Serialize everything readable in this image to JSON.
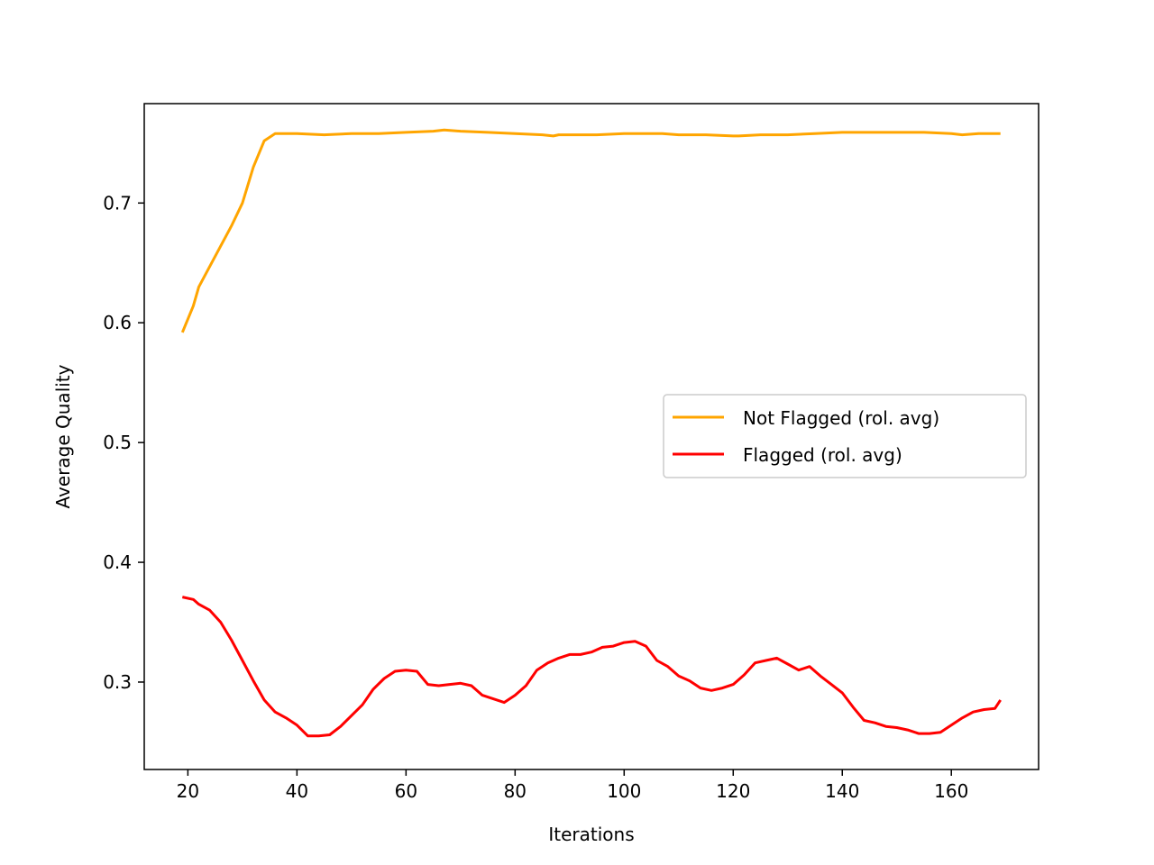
{
  "chart_data": {
    "type": "line",
    "title": "",
    "xlabel": "Iterations",
    "ylabel": "Average Quality",
    "xlim": [
      12,
      176
    ],
    "ylim": [
      0.227,
      0.783
    ],
    "xticks": [
      20,
      40,
      60,
      80,
      100,
      120,
      140,
      160
    ],
    "xtick_labels": [
      "20",
      "40",
      "60",
      "80",
      "100",
      "120",
      "140",
      "160"
    ],
    "yticks": [
      0.3,
      0.4,
      0.5,
      0.6,
      0.7
    ],
    "ytick_labels": [
      "0.3",
      "0.4",
      "0.5",
      "0.6",
      "0.7"
    ],
    "grid": false,
    "legend_position": "center-right",
    "series": [
      {
        "name": "Not Flagged (rol. avg)",
        "color": "#ffa500",
        "x": [
          19,
          21,
          22,
          24,
          26,
          28,
          30,
          32,
          34,
          36,
          40,
          45,
          50,
          55,
          60,
          65,
          67,
          70,
          75,
          80,
          85,
          87,
          88,
          95,
          100,
          107,
          110,
          115,
          120,
          121,
          125,
          130,
          135,
          140,
          145,
          150,
          155,
          160,
          162,
          165,
          169
        ],
        "y": [
          0.592,
          0.614,
          0.63,
          0.647,
          0.664,
          0.681,
          0.7,
          0.73,
          0.752,
          0.758,
          0.758,
          0.757,
          0.758,
          0.758,
          0.759,
          0.76,
          0.761,
          0.76,
          0.759,
          0.758,
          0.757,
          0.756,
          0.757,
          0.757,
          0.758,
          0.758,
          0.757,
          0.757,
          0.756,
          0.756,
          0.757,
          0.757,
          0.758,
          0.759,
          0.759,
          0.759,
          0.759,
          0.758,
          0.757,
          0.758,
          0.758
        ]
      },
      {
        "name": "Flagged (rol. avg)",
        "color": "#ff0000",
        "x": [
          19,
          21,
          22,
          24,
          26,
          28,
          30,
          32,
          34,
          36,
          38,
          40,
          42,
          44,
          46,
          48,
          50,
          52,
          54,
          56,
          58,
          60,
          62,
          64,
          66,
          68,
          70,
          72,
          74,
          76,
          78,
          80,
          82,
          84,
          86,
          88,
          90,
          92,
          94,
          96,
          98,
          100,
          102,
          104,
          106,
          108,
          110,
          112,
          114,
          116,
          118,
          120,
          122,
          124,
          126,
          128,
          130,
          132,
          134,
          136,
          138,
          140,
          142,
          144,
          146,
          148,
          150,
          152,
          154,
          156,
          158,
          160,
          162,
          164,
          166,
          168,
          169
        ],
        "y": [
          0.371,
          0.369,
          0.365,
          0.36,
          0.35,
          0.335,
          0.318,
          0.301,
          0.285,
          0.275,
          0.27,
          0.264,
          0.255,
          0.255,
          0.256,
          0.263,
          0.272,
          0.281,
          0.294,
          0.303,
          0.309,
          0.31,
          0.309,
          0.298,
          0.297,
          0.298,
          0.299,
          0.297,
          0.289,
          0.286,
          0.283,
          0.289,
          0.297,
          0.31,
          0.316,
          0.32,
          0.323,
          0.323,
          0.325,
          0.329,
          0.33,
          0.333,
          0.334,
          0.33,
          0.318,
          0.313,
          0.305,
          0.301,
          0.295,
          0.293,
          0.295,
          0.298,
          0.306,
          0.316,
          0.318,
          0.32,
          0.315,
          0.31,
          0.313,
          0.305,
          0.298,
          0.291,
          0.279,
          0.268,
          0.266,
          0.263,
          0.262,
          0.26,
          0.257,
          0.257,
          0.258,
          0.264,
          0.27,
          0.275,
          0.277,
          0.278,
          0.285
        ]
      }
    ]
  }
}
